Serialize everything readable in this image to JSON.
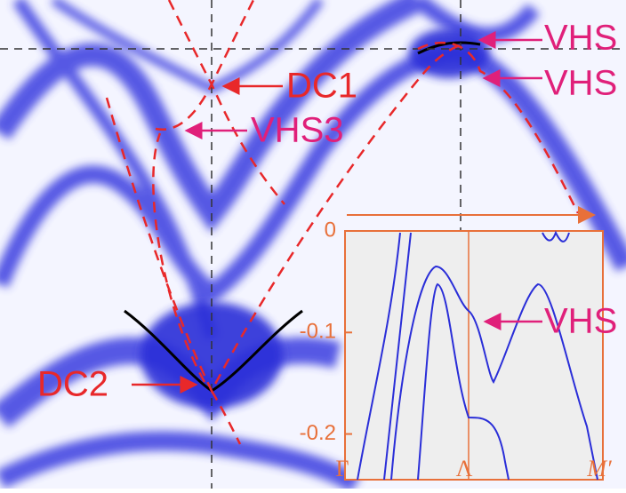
{
  "figure": {
    "annotations": [
      {
        "label": "DC1"
      },
      {
        "label": "VHS3"
      },
      {
        "label": "DC2"
      },
      {
        "label": "VHS"
      },
      {
        "label": "VHS"
      },
      {
        "label": "VHS"
      }
    ],
    "inset": {
      "ylim": [
        -0.245,
        0
      ],
      "yticks": [
        0,
        -0.1,
        -0.2
      ],
      "xlabels": [
        "Γ",
        "Λ",
        "M′"
      ]
    }
  }
}
